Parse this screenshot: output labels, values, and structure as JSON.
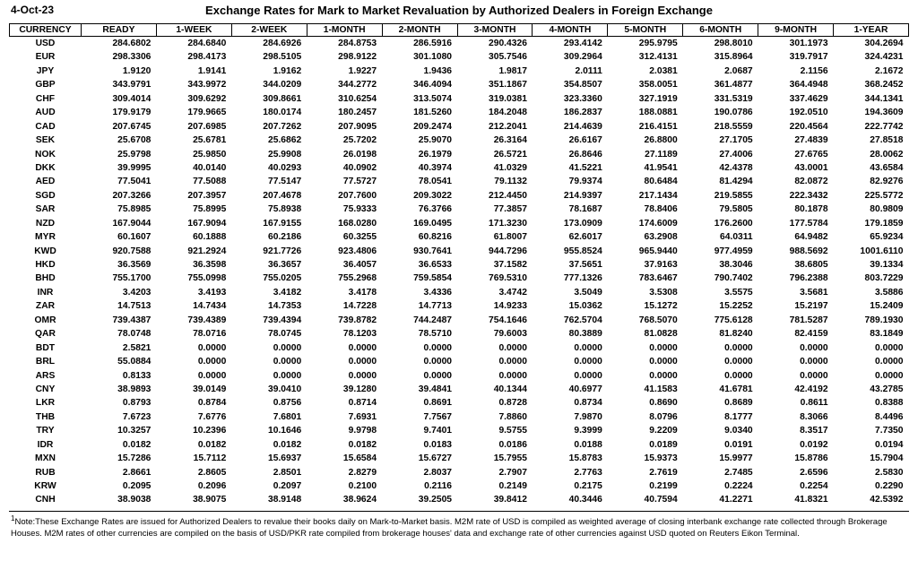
{
  "header": {
    "date": "4-Oct-23",
    "title": "Exchange Rates for Mark to Market Revaluation by Authorized Dealers in Foreign Exchange"
  },
  "table": {
    "columns": [
      "CURRENCY",
      "READY",
      "1-WEEK",
      "2-WEEK",
      "1-MONTH",
      "2-MONTH",
      "3-MONTH",
      "4-MONTH",
      "5-MONTH",
      "6-MONTH",
      "9-MONTH",
      "1-YEAR"
    ],
    "rows": [
      [
        "USD",
        "284.6802",
        "284.6840",
        "284.6926",
        "284.8753",
        "286.5916",
        "290.4326",
        "293.4142",
        "295.9795",
        "298.8010",
        "301.1973",
        "304.2694"
      ],
      [
        "EUR",
        "298.3306",
        "298.4173",
        "298.5105",
        "298.9122",
        "301.1080",
        "305.7546",
        "309.2964",
        "312.4131",
        "315.8964",
        "319.7917",
        "324.4231"
      ],
      [
        "JPY",
        "1.9120",
        "1.9141",
        "1.9162",
        "1.9227",
        "1.9436",
        "1.9817",
        "2.0111",
        "2.0381",
        "2.0687",
        "2.1156",
        "2.1672"
      ],
      [
        "GBP",
        "343.9791",
        "343.9972",
        "344.0209",
        "344.2772",
        "346.4094",
        "351.1867",
        "354.8507",
        "358.0051",
        "361.4877",
        "364.4948",
        "368.2452"
      ],
      [
        "CHF",
        "309.4014",
        "309.6292",
        "309.8661",
        "310.6254",
        "313.5074",
        "319.0381",
        "323.3360",
        "327.1919",
        "331.5319",
        "337.4629",
        "344.1341"
      ],
      [
        "AUD",
        "179.9179",
        "179.9665",
        "180.0174",
        "180.2457",
        "181.5260",
        "184.2048",
        "186.2837",
        "188.0881",
        "190.0786",
        "192.0510",
        "194.3609"
      ],
      [
        "CAD",
        "207.6745",
        "207.6985",
        "207.7262",
        "207.9095",
        "209.2474",
        "212.2041",
        "214.4639",
        "216.4151",
        "218.5559",
        "220.4564",
        "222.7742"
      ],
      [
        "SEK",
        "25.6708",
        "25.6781",
        "25.6862",
        "25.7202",
        "25.9070",
        "26.3164",
        "26.6167",
        "26.8800",
        "27.1705",
        "27.4839",
        "27.8518"
      ],
      [
        "NOK",
        "25.9798",
        "25.9850",
        "25.9908",
        "26.0198",
        "26.1979",
        "26.5721",
        "26.8646",
        "27.1189",
        "27.4006",
        "27.6765",
        "28.0062"
      ],
      [
        "DKK",
        "39.9995",
        "40.0140",
        "40.0293",
        "40.0902",
        "40.3974",
        "41.0329",
        "41.5221",
        "41.9541",
        "42.4378",
        "43.0001",
        "43.6584"
      ],
      [
        "AED",
        "77.5041",
        "77.5088",
        "77.5147",
        "77.5727",
        "78.0541",
        "79.1132",
        "79.9374",
        "80.6484",
        "81.4294",
        "82.0872",
        "82.9276"
      ],
      [
        "SGD",
        "207.3266",
        "207.3957",
        "207.4678",
        "207.7600",
        "209.3022",
        "212.4450",
        "214.9397",
        "217.1434",
        "219.5855",
        "222.3432",
        "225.5772"
      ],
      [
        "SAR",
        "75.8985",
        "75.8995",
        "75.8938",
        "75.9333",
        "76.3766",
        "77.3857",
        "78.1687",
        "78.8406",
        "79.5805",
        "80.1878",
        "80.9809"
      ],
      [
        "NZD",
        "167.9044",
        "167.9094",
        "167.9155",
        "168.0280",
        "169.0495",
        "171.3230",
        "173.0909",
        "174.6009",
        "176.2600",
        "177.5784",
        "179.1859"
      ],
      [
        "MYR",
        "60.1607",
        "60.1888",
        "60.2186",
        "60.3255",
        "60.8216",
        "61.8007",
        "62.6017",
        "63.2908",
        "64.0311",
        "64.9482",
        "65.9234"
      ],
      [
        "KWD",
        "920.7588",
        "921.2924",
        "921.7726",
        "923.4806",
        "930.7641",
        "944.7296",
        "955.8524",
        "965.9440",
        "977.4959",
        "988.5692",
        "1001.6110"
      ],
      [
        "HKD",
        "36.3569",
        "36.3598",
        "36.3657",
        "36.4057",
        "36.6533",
        "37.1582",
        "37.5651",
        "37.9163",
        "38.3046",
        "38.6805",
        "39.1334"
      ],
      [
        "BHD",
        "755.1700",
        "755.0998",
        "755.0205",
        "755.2968",
        "759.5854",
        "769.5310",
        "777.1326",
        "783.6467",
        "790.7402",
        "796.2388",
        "803.7229"
      ],
      [
        "INR",
        "3.4203",
        "3.4193",
        "3.4182",
        "3.4178",
        "3.4336",
        "3.4742",
        "3.5049",
        "3.5308",
        "3.5575",
        "3.5681",
        "3.5886"
      ],
      [
        "ZAR",
        "14.7513",
        "14.7434",
        "14.7353",
        "14.7228",
        "14.7713",
        "14.9233",
        "15.0362",
        "15.1272",
        "15.2252",
        "15.2197",
        "15.2409"
      ],
      [
        "OMR",
        "739.4387",
        "739.4389",
        "739.4394",
        "739.8782",
        "744.2487",
        "754.1646",
        "762.5704",
        "768.5070",
        "775.6128",
        "781.5287",
        "789.1930"
      ],
      [
        "QAR",
        "78.0748",
        "78.0716",
        "78.0745",
        "78.1203",
        "78.5710",
        "79.6003",
        "80.3889",
        "81.0828",
        "81.8240",
        "82.4159",
        "83.1849"
      ],
      [
        "BDT",
        "2.5821",
        "0.0000",
        "0.0000",
        "0.0000",
        "0.0000",
        "0.0000",
        "0.0000",
        "0.0000",
        "0.0000",
        "0.0000",
        "0.0000"
      ],
      [
        "BRL",
        "55.0884",
        "0.0000",
        "0.0000",
        "0.0000",
        "0.0000",
        "0.0000",
        "0.0000",
        "0.0000",
        "0.0000",
        "0.0000",
        "0.0000"
      ],
      [
        "ARS",
        "0.8133",
        "0.0000",
        "0.0000",
        "0.0000",
        "0.0000",
        "0.0000",
        "0.0000",
        "0.0000",
        "0.0000",
        "0.0000",
        "0.0000"
      ],
      [
        "CNY",
        "38.9893",
        "39.0149",
        "39.0410",
        "39.1280",
        "39.4841",
        "40.1344",
        "40.6977",
        "41.1583",
        "41.6781",
        "42.4192",
        "43.2785"
      ],
      [
        "LKR",
        "0.8793",
        "0.8784",
        "0.8756",
        "0.8714",
        "0.8691",
        "0.8728",
        "0.8734",
        "0.8690",
        "0.8689",
        "0.8611",
        "0.8388"
      ],
      [
        "THB",
        "7.6723",
        "7.6776",
        "7.6801",
        "7.6931",
        "7.7567",
        "7.8860",
        "7.9870",
        "8.0796",
        "8.1777",
        "8.3066",
        "8.4496"
      ],
      [
        "TRY",
        "10.3257",
        "10.2396",
        "10.1646",
        "9.9798",
        "9.7401",
        "9.5755",
        "9.3999",
        "9.2209",
        "9.0340",
        "8.3517",
        "7.7350"
      ],
      [
        "IDR",
        "0.0182",
        "0.0182",
        "0.0182",
        "0.0182",
        "0.0183",
        "0.0186",
        "0.0188",
        "0.0189",
        "0.0191",
        "0.0192",
        "0.0194"
      ],
      [
        "MXN",
        "15.7286",
        "15.7112",
        "15.6937",
        "15.6584",
        "15.6727",
        "15.7955",
        "15.8783",
        "15.9373",
        "15.9977",
        "15.8786",
        "15.7904"
      ],
      [
        "RUB",
        "2.8661",
        "2.8605",
        "2.8501",
        "2.8279",
        "2.8037",
        "2.7907",
        "2.7763",
        "2.7619",
        "2.7485",
        "2.6596",
        "2.5830"
      ],
      [
        "KRW",
        "0.2095",
        "0.2096",
        "0.2097",
        "0.2100",
        "0.2116",
        "0.2149",
        "0.2175",
        "0.2199",
        "0.2224",
        "0.2254",
        "0.2290"
      ],
      [
        "CNH",
        "38.9038",
        "38.9075",
        "38.9148",
        "38.9624",
        "39.2505",
        "39.8412",
        "40.3446",
        "40.7594",
        "41.2271",
        "41.8321",
        "42.5392"
      ]
    ]
  },
  "footnote": "Note:These Exchange Rates are issued for Authorized Dealers to revalue their books daily on Mark-to-Market basis. M2M rate of USD is compiled as weighted average of closing interbank exchange rate collected through Brokerage Houses. M2M rates of other currencies are compiled on the basis of USD/PKR rate compiled from brokerage houses' data and exchange rate of other currencies against USD quoted on Reuters Eikon Terminal."
}
